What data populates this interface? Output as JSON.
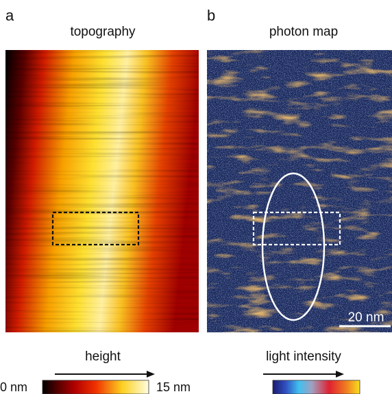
{
  "panels": [
    {
      "label": "a",
      "title": "topography",
      "colorbar_title": "height",
      "colorbar_min": "0 nm",
      "colorbar_max": "15 nm"
    },
    {
      "label": "b",
      "title": "photon map",
      "colorbar_title": "light intensity",
      "scale_bar": "20 nm"
    }
  ]
}
